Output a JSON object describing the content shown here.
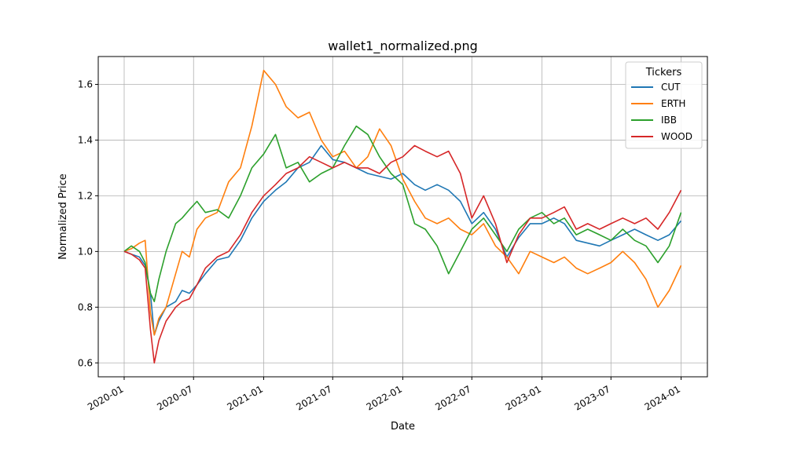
{
  "chart_data": {
    "type": "line",
    "title": "wallet1_normalized.png",
    "xlabel": "Date",
    "ylabel": "Normalized Price",
    "xlim": [
      "2019-10-25",
      "2024-03-10"
    ],
    "ylim": [
      0.55,
      1.7
    ],
    "grid": true,
    "x_ticks": [
      {
        "date": "2020-01-01",
        "label": "2020-01"
      },
      {
        "date": "2020-07-01",
        "label": "2020-07"
      },
      {
        "date": "2021-01-01",
        "label": "2021-01"
      },
      {
        "date": "2021-07-01",
        "label": "2021-07"
      },
      {
        "date": "2022-01-01",
        "label": "2022-01"
      },
      {
        "date": "2022-07-01",
        "label": "2022-07"
      },
      {
        "date": "2023-01-01",
        "label": "2023-01"
      },
      {
        "date": "2023-07-01",
        "label": "2023-07"
      },
      {
        "date": "2024-01-01",
        "label": "2024-01"
      }
    ],
    "y_ticks": [
      0.6,
      0.8,
      1.0,
      1.2,
      1.4,
      1.6
    ],
    "legend": {
      "title": "Tickers",
      "position": "top-right"
    },
    "series": [
      {
        "name": "CUT",
        "color": "#1f77b4",
        "points": [
          [
            "2020-01-01",
            1.0
          ],
          [
            "2020-01-20",
            0.99
          ],
          [
            "2020-02-10",
            0.98
          ],
          [
            "2020-02-25",
            0.95
          ],
          [
            "2020-03-10",
            0.85
          ],
          [
            "2020-03-20",
            0.7
          ],
          [
            "2020-04-01",
            0.75
          ],
          [
            "2020-04-20",
            0.8
          ],
          [
            "2020-05-15",
            0.82
          ],
          [
            "2020-06-01",
            0.86
          ],
          [
            "2020-06-20",
            0.85
          ],
          [
            "2020-07-10",
            0.88
          ],
          [
            "2020-08-01",
            0.92
          ],
          [
            "2020-09-01",
            0.97
          ],
          [
            "2020-10-01",
            0.98
          ],
          [
            "2020-11-01",
            1.04
          ],
          [
            "2020-12-01",
            1.12
          ],
          [
            "2021-01-01",
            1.18
          ],
          [
            "2021-02-01",
            1.22
          ],
          [
            "2021-03-01",
            1.25
          ],
          [
            "2021-04-01",
            1.3
          ],
          [
            "2021-05-01",
            1.32
          ],
          [
            "2021-06-01",
            1.38
          ],
          [
            "2021-07-01",
            1.33
          ],
          [
            "2021-08-01",
            1.32
          ],
          [
            "2021-09-01",
            1.3
          ],
          [
            "2021-10-01",
            1.28
          ],
          [
            "2021-11-01",
            1.27
          ],
          [
            "2021-12-01",
            1.26
          ],
          [
            "2022-01-01",
            1.28
          ],
          [
            "2022-02-01",
            1.24
          ],
          [
            "2022-03-01",
            1.22
          ],
          [
            "2022-04-01",
            1.24
          ],
          [
            "2022-05-01",
            1.22
          ],
          [
            "2022-06-01",
            1.18
          ],
          [
            "2022-07-01",
            1.1
          ],
          [
            "2022-08-01",
            1.14
          ],
          [
            "2022-09-01",
            1.08
          ],
          [
            "2022-10-01",
            0.98
          ],
          [
            "2022-11-01",
            1.05
          ],
          [
            "2022-12-01",
            1.1
          ],
          [
            "2023-01-01",
            1.1
          ],
          [
            "2023-02-01",
            1.12
          ],
          [
            "2023-03-01",
            1.1
          ],
          [
            "2023-04-01",
            1.04
          ],
          [
            "2023-05-01",
            1.03
          ],
          [
            "2023-06-01",
            1.02
          ],
          [
            "2023-07-01",
            1.04
          ],
          [
            "2023-08-01",
            1.06
          ],
          [
            "2023-09-01",
            1.08
          ],
          [
            "2023-10-01",
            1.06
          ],
          [
            "2023-11-01",
            1.04
          ],
          [
            "2023-12-01",
            1.06
          ],
          [
            "2024-01-01",
            1.11
          ]
        ]
      },
      {
        "name": "ERTH",
        "color": "#ff7f0e",
        "points": [
          [
            "2020-01-01",
            1.0
          ],
          [
            "2020-01-20",
            1.01
          ],
          [
            "2020-02-10",
            1.03
          ],
          [
            "2020-02-25",
            1.04
          ],
          [
            "2020-03-10",
            0.78
          ],
          [
            "2020-03-20",
            0.7
          ],
          [
            "2020-04-01",
            0.76
          ],
          [
            "2020-04-20",
            0.8
          ],
          [
            "2020-05-15",
            0.92
          ],
          [
            "2020-06-01",
            1.0
          ],
          [
            "2020-06-20",
            0.98
          ],
          [
            "2020-07-10",
            1.08
          ],
          [
            "2020-08-01",
            1.12
          ],
          [
            "2020-09-01",
            1.14
          ],
          [
            "2020-10-01",
            1.25
          ],
          [
            "2020-11-01",
            1.3
          ],
          [
            "2020-12-01",
            1.45
          ],
          [
            "2021-01-01",
            1.65
          ],
          [
            "2021-02-01",
            1.6
          ],
          [
            "2021-03-01",
            1.52
          ],
          [
            "2021-04-01",
            1.48
          ],
          [
            "2021-05-01",
            1.5
          ],
          [
            "2021-06-01",
            1.4
          ],
          [
            "2021-07-01",
            1.34
          ],
          [
            "2021-08-01",
            1.36
          ],
          [
            "2021-09-01",
            1.3
          ],
          [
            "2021-10-01",
            1.34
          ],
          [
            "2021-11-01",
            1.44
          ],
          [
            "2021-12-01",
            1.38
          ],
          [
            "2022-01-01",
            1.26
          ],
          [
            "2022-02-01",
            1.18
          ],
          [
            "2022-03-01",
            1.12
          ],
          [
            "2022-04-01",
            1.1
          ],
          [
            "2022-05-01",
            1.12
          ],
          [
            "2022-06-01",
            1.08
          ],
          [
            "2022-07-01",
            1.06
          ],
          [
            "2022-08-01",
            1.1
          ],
          [
            "2022-09-01",
            1.02
          ],
          [
            "2022-10-01",
            0.98
          ],
          [
            "2022-11-01",
            0.92
          ],
          [
            "2022-12-01",
            1.0
          ],
          [
            "2023-01-01",
            0.98
          ],
          [
            "2023-02-01",
            0.96
          ],
          [
            "2023-03-01",
            0.98
          ],
          [
            "2023-04-01",
            0.94
          ],
          [
            "2023-05-01",
            0.92
          ],
          [
            "2023-06-01",
            0.94
          ],
          [
            "2023-07-01",
            0.96
          ],
          [
            "2023-08-01",
            1.0
          ],
          [
            "2023-09-01",
            0.96
          ],
          [
            "2023-10-01",
            0.9
          ],
          [
            "2023-11-01",
            0.8
          ],
          [
            "2023-12-01",
            0.86
          ],
          [
            "2024-01-01",
            0.95
          ]
        ]
      },
      {
        "name": "IBB",
        "color": "#2ca02c",
        "points": [
          [
            "2020-01-01",
            1.0
          ],
          [
            "2020-01-20",
            1.02
          ],
          [
            "2020-02-10",
            1.0
          ],
          [
            "2020-02-25",
            0.96
          ],
          [
            "2020-03-10",
            0.85
          ],
          [
            "2020-03-20",
            0.82
          ],
          [
            "2020-04-01",
            0.9
          ],
          [
            "2020-04-20",
            1.0
          ],
          [
            "2020-05-15",
            1.1
          ],
          [
            "2020-06-01",
            1.12
          ],
          [
            "2020-06-20",
            1.15
          ],
          [
            "2020-07-10",
            1.18
          ],
          [
            "2020-08-01",
            1.14
          ],
          [
            "2020-09-01",
            1.15
          ],
          [
            "2020-10-01",
            1.12
          ],
          [
            "2020-11-01",
            1.2
          ],
          [
            "2020-12-01",
            1.3
          ],
          [
            "2021-01-01",
            1.35
          ],
          [
            "2021-02-01",
            1.42
          ],
          [
            "2021-03-01",
            1.3
          ],
          [
            "2021-04-01",
            1.32
          ],
          [
            "2021-05-01",
            1.25
          ],
          [
            "2021-06-01",
            1.28
          ],
          [
            "2021-07-01",
            1.3
          ],
          [
            "2021-08-01",
            1.38
          ],
          [
            "2021-09-01",
            1.45
          ],
          [
            "2021-10-01",
            1.42
          ],
          [
            "2021-11-01",
            1.34
          ],
          [
            "2021-12-01",
            1.28
          ],
          [
            "2022-01-01",
            1.24
          ],
          [
            "2022-02-01",
            1.1
          ],
          [
            "2022-03-01",
            1.08
          ],
          [
            "2022-04-01",
            1.02
          ],
          [
            "2022-05-01",
            0.92
          ],
          [
            "2022-06-01",
            1.0
          ],
          [
            "2022-07-01",
            1.08
          ],
          [
            "2022-08-01",
            1.12
          ],
          [
            "2022-09-01",
            1.06
          ],
          [
            "2022-10-01",
            1.0
          ],
          [
            "2022-11-01",
            1.08
          ],
          [
            "2022-12-01",
            1.12
          ],
          [
            "2023-01-01",
            1.14
          ],
          [
            "2023-02-01",
            1.1
          ],
          [
            "2023-03-01",
            1.12
          ],
          [
            "2023-04-01",
            1.06
          ],
          [
            "2023-05-01",
            1.08
          ],
          [
            "2023-06-01",
            1.06
          ],
          [
            "2023-07-01",
            1.04
          ],
          [
            "2023-08-01",
            1.08
          ],
          [
            "2023-09-01",
            1.04
          ],
          [
            "2023-10-01",
            1.02
          ],
          [
            "2023-11-01",
            0.96
          ],
          [
            "2023-12-01",
            1.02
          ],
          [
            "2024-01-01",
            1.14
          ]
        ]
      },
      {
        "name": "WOOD",
        "color": "#d62728",
        "points": [
          [
            "2020-01-01",
            1.0
          ],
          [
            "2020-01-20",
            0.99
          ],
          [
            "2020-02-10",
            0.97
          ],
          [
            "2020-02-25",
            0.94
          ],
          [
            "2020-03-10",
            0.72
          ],
          [
            "2020-03-20",
            0.6
          ],
          [
            "2020-04-01",
            0.68
          ],
          [
            "2020-04-20",
            0.75
          ],
          [
            "2020-05-15",
            0.8
          ],
          [
            "2020-06-01",
            0.82
          ],
          [
            "2020-06-20",
            0.83
          ],
          [
            "2020-07-10",
            0.88
          ],
          [
            "2020-08-01",
            0.94
          ],
          [
            "2020-09-01",
            0.98
          ],
          [
            "2020-10-01",
            1.0
          ],
          [
            "2020-11-01",
            1.06
          ],
          [
            "2020-12-01",
            1.14
          ],
          [
            "2021-01-01",
            1.2
          ],
          [
            "2021-02-01",
            1.24
          ],
          [
            "2021-03-01",
            1.28
          ],
          [
            "2021-04-01",
            1.3
          ],
          [
            "2021-05-01",
            1.34
          ],
          [
            "2021-06-01",
            1.32
          ],
          [
            "2021-07-01",
            1.3
          ],
          [
            "2021-08-01",
            1.32
          ],
          [
            "2021-09-01",
            1.3
          ],
          [
            "2021-10-01",
            1.3
          ],
          [
            "2021-11-01",
            1.28
          ],
          [
            "2021-12-01",
            1.32
          ],
          [
            "2022-01-01",
            1.34
          ],
          [
            "2022-02-01",
            1.38
          ],
          [
            "2022-03-01",
            1.36
          ],
          [
            "2022-04-01",
            1.34
          ],
          [
            "2022-05-01",
            1.36
          ],
          [
            "2022-06-01",
            1.28
          ],
          [
            "2022-07-01",
            1.12
          ],
          [
            "2022-08-01",
            1.2
          ],
          [
            "2022-09-01",
            1.1
          ],
          [
            "2022-10-01",
            0.96
          ],
          [
            "2022-11-01",
            1.06
          ],
          [
            "2022-12-01",
            1.12
          ],
          [
            "2023-01-01",
            1.12
          ],
          [
            "2023-02-01",
            1.14
          ],
          [
            "2023-03-01",
            1.16
          ],
          [
            "2023-04-01",
            1.08
          ],
          [
            "2023-05-01",
            1.1
          ],
          [
            "2023-06-01",
            1.08
          ],
          [
            "2023-07-01",
            1.1
          ],
          [
            "2023-08-01",
            1.12
          ],
          [
            "2023-09-01",
            1.1
          ],
          [
            "2023-10-01",
            1.12
          ],
          [
            "2023-11-01",
            1.08
          ],
          [
            "2023-12-01",
            1.14
          ],
          [
            "2024-01-01",
            1.22
          ]
        ]
      }
    ]
  }
}
